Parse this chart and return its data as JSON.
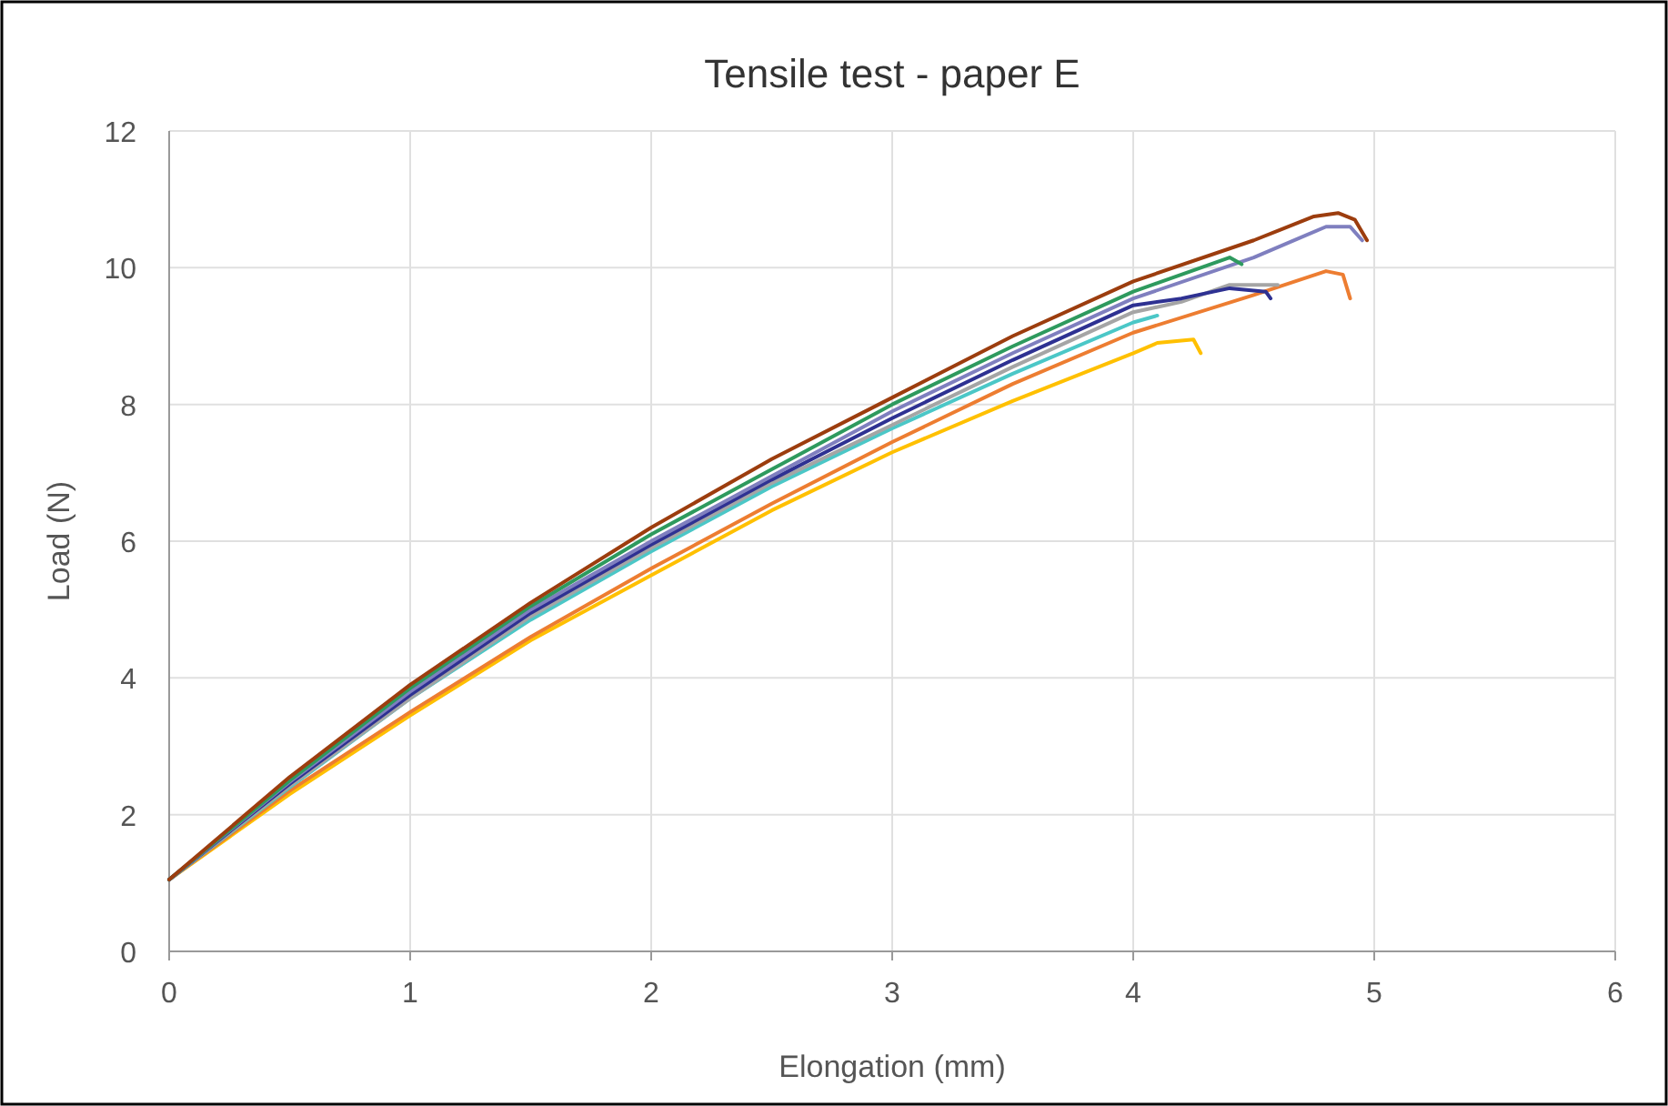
{
  "chart_data": {
    "type": "line",
    "title": "Tensile test - paper E",
    "xlabel": "Elongation (mm)",
    "ylabel": "Load (N)",
    "xlim": [
      0,
      6
    ],
    "ylim": [
      0,
      12
    ],
    "xticks": [
      0,
      1,
      2,
      3,
      4,
      5,
      6
    ],
    "yticks": [
      0,
      2,
      4,
      6,
      8,
      10,
      12
    ],
    "grid": true,
    "marker": "none",
    "line_style": "solid",
    "series": [
      {
        "color": "#ffc000",
        "x": [
          0,
          0.5,
          1,
          1.5,
          2,
          2.5,
          3,
          3.5,
          4,
          4.1,
          4.25,
          4.28
        ],
        "values": [
          1.05,
          2.3,
          3.45,
          4.55,
          5.5,
          6.45,
          7.3,
          8.05,
          8.75,
          8.9,
          8.95,
          8.75
        ]
      },
      {
        "color": "#ed7d31",
        "x": [
          0,
          0.5,
          1,
          1.5,
          2,
          2.5,
          3,
          3.5,
          4,
          4.5,
          4.8,
          4.87,
          4.9
        ],
        "values": [
          1.05,
          2.35,
          3.5,
          4.6,
          5.6,
          6.55,
          7.45,
          8.3,
          9.05,
          9.6,
          9.95,
          9.9,
          9.55
        ]
      },
      {
        "color": "#4bc7c7",
        "x": [
          0,
          0.5,
          1,
          1.5,
          2,
          2.5,
          3,
          3.5,
          4,
          4.1
        ],
        "values": [
          1.05,
          2.4,
          3.7,
          4.85,
          5.85,
          6.8,
          7.65,
          8.45,
          9.2,
          9.3
        ]
      },
      {
        "color": "#a5a5a5",
        "x": [
          0,
          0.5,
          1,
          1.5,
          2,
          2.5,
          3,
          3.5,
          4,
          4.2,
          4.4,
          4.6
        ],
        "values": [
          1.05,
          2.42,
          3.7,
          4.9,
          5.9,
          6.85,
          7.7,
          8.55,
          9.35,
          9.5,
          9.75,
          9.75
        ]
      },
      {
        "color": "#2e3192",
        "x": [
          0,
          0.5,
          1,
          1.5,
          2,
          2.5,
          3,
          3.5,
          4,
          4.2,
          4.4,
          4.55,
          4.57
        ],
        "values": [
          1.05,
          2.45,
          3.75,
          4.95,
          5.95,
          6.9,
          7.8,
          8.65,
          9.45,
          9.55,
          9.7,
          9.65,
          9.55
        ]
      },
      {
        "color": "#7f7fbf",
        "x": [
          0,
          0.5,
          1,
          1.5,
          2,
          2.5,
          3,
          3.5,
          4,
          4.5,
          4.8,
          4.9,
          4.95
        ],
        "values": [
          1.05,
          2.48,
          3.8,
          5.0,
          6.0,
          6.95,
          7.9,
          8.75,
          9.55,
          10.15,
          10.6,
          10.6,
          10.4
        ]
      },
      {
        "color": "#2e9a5e",
        "x": [
          0,
          0.5,
          1,
          1.5,
          2,
          2.5,
          3,
          3.5,
          4,
          4.4,
          4.45
        ],
        "values": [
          1.05,
          2.5,
          3.85,
          5.05,
          6.1,
          7.05,
          8.0,
          8.85,
          9.65,
          10.15,
          10.05
        ]
      },
      {
        "color": "#9c3d0e",
        "x": [
          0,
          0.5,
          1,
          1.5,
          2,
          2.5,
          3,
          3.5,
          4,
          4.5,
          4.75,
          4.85,
          4.92,
          4.97
        ],
        "values": [
          1.05,
          2.55,
          3.9,
          5.1,
          6.2,
          7.2,
          8.1,
          9.0,
          9.8,
          10.4,
          10.75,
          10.8,
          10.7,
          10.4
        ]
      }
    ]
  }
}
